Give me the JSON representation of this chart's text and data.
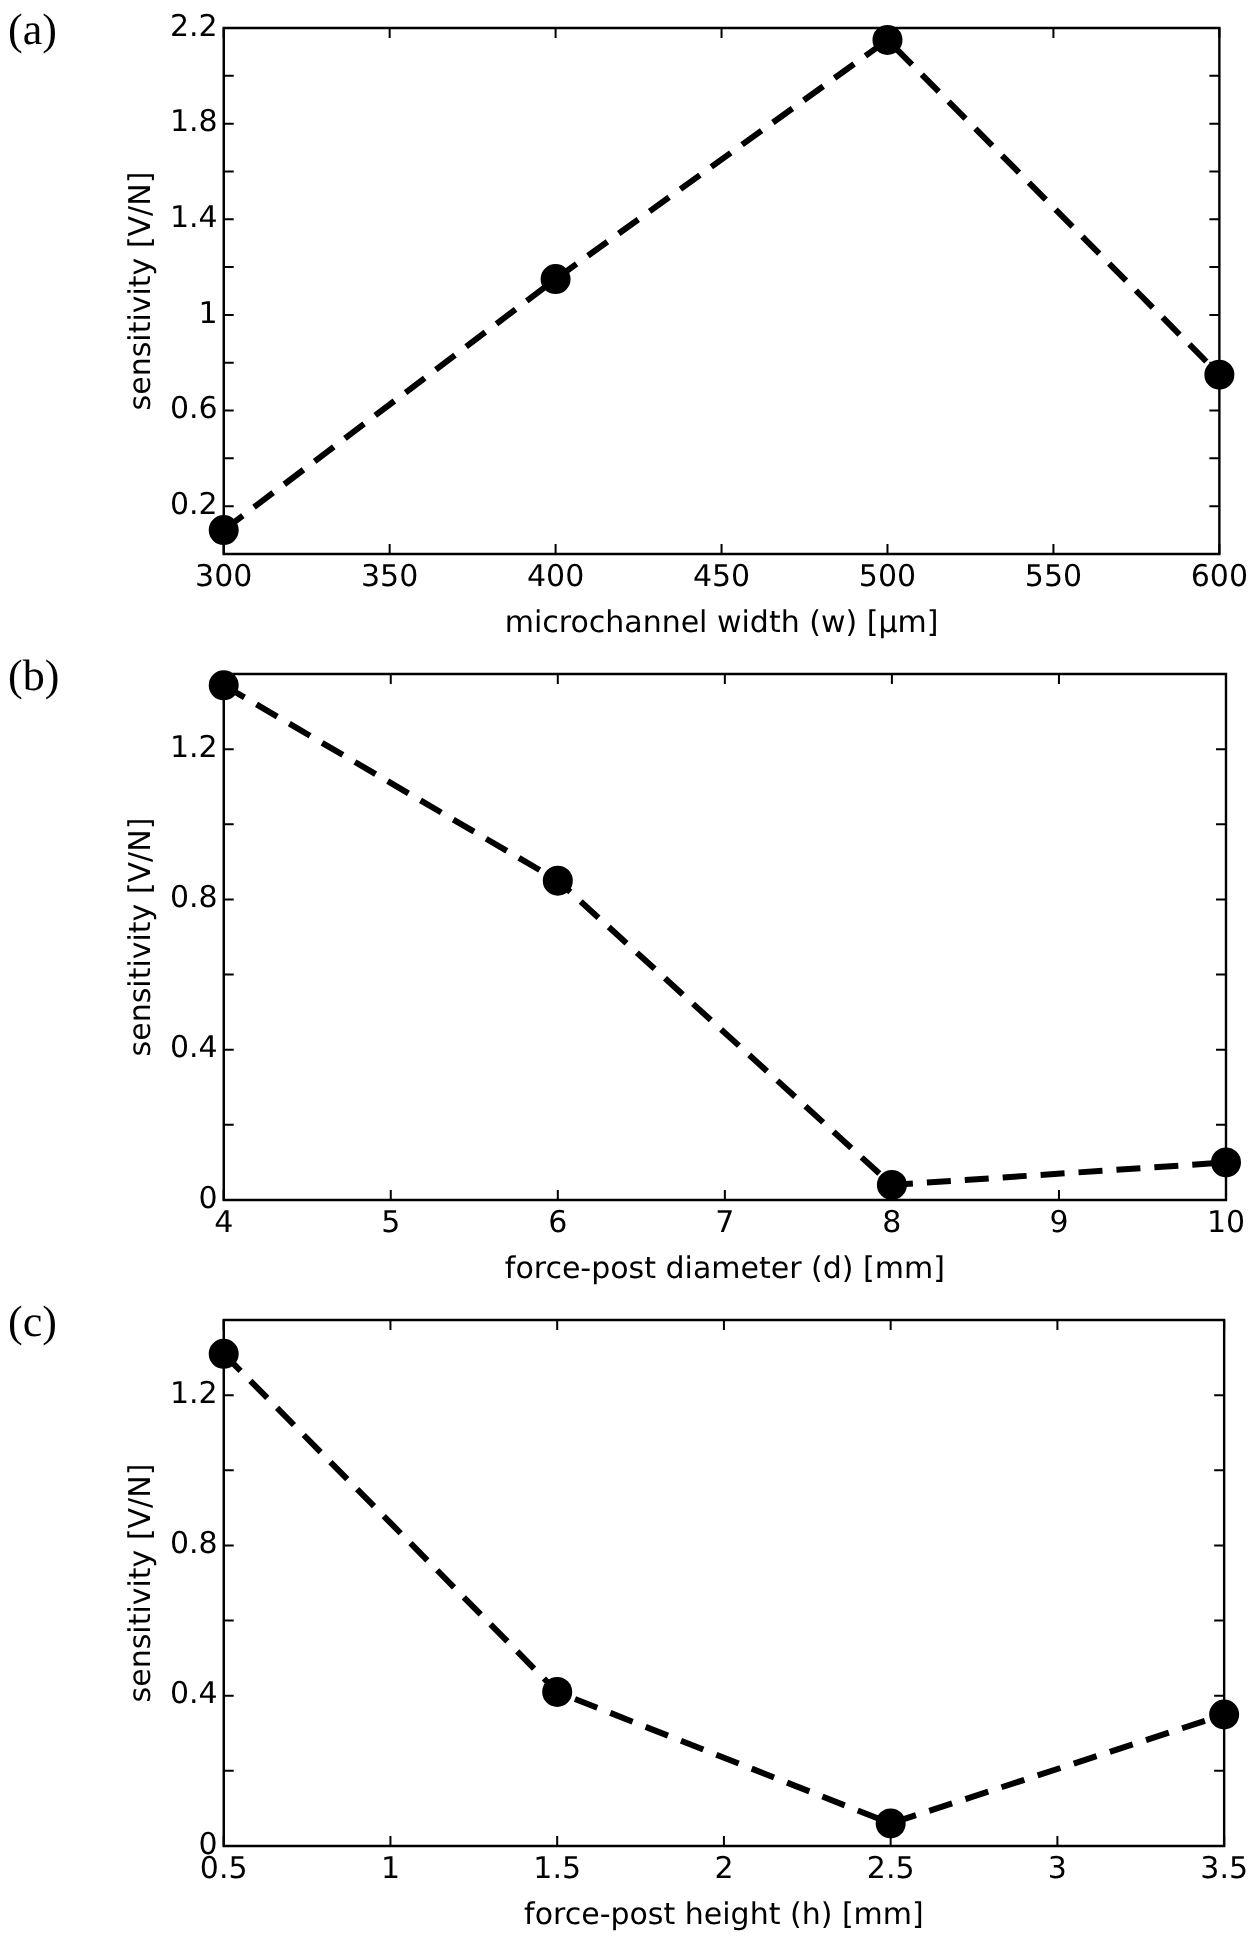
{
  "chart_data": [
    {
      "type": "line",
      "annotations": [
        "(a)"
      ],
      "x": [
        300,
        400,
        500,
        600
      ],
      "xlim": [
        300,
        600
      ],
      "xticks": [
        300,
        350,
        400,
        450,
        500,
        550,
        600
      ],
      "ylim": [
        0,
        2.2
      ],
      "yticks": [
        0.2,
        {
          "value": 0.4,
          "label": null
        },
        0.6,
        {
          "value": 0.8,
          "label": null
        },
        1,
        {
          "value": 1.2,
          "label": null
        },
        1.4,
        {
          "value": 1.6,
          "label": null
        },
        1.8,
        {
          "value": 2,
          "label": null
        },
        2.2
      ],
      "xlabel": "microchannel width (w) [μm]",
      "ylabel": "sensitivity [V/N]",
      "marker": "circle",
      "line_style": "dashed",
      "series": [
        {
          "color": "#000000",
          "values": [
            0.1,
            1.15,
            2.15,
            0.75
          ]
        }
      ]
    },
    {
      "type": "line",
      "annotations": [
        "(b)"
      ],
      "x": [
        4,
        6,
        8,
        10
      ],
      "xlim": [
        4,
        10
      ],
      "xticks": [
        4,
        5,
        6,
        7,
        8,
        9,
        10
      ],
      "ylim": [
        0,
        1.4
      ],
      "yticks": [
        0,
        {
          "value": 0.2,
          "label": null
        },
        0.4,
        {
          "value": 0.6,
          "label": null
        },
        0.8,
        {
          "value": 1,
          "label": null
        },
        1.2
      ],
      "xlabel": "force-post diameter (d) [mm]",
      "ylabel": "sensitivity [V/N]",
      "marker": "circle",
      "line_style": "dashed",
      "series": [
        {
          "color": "#000000",
          "values": [
            1.37,
            0.85,
            0.04,
            0.1
          ]
        }
      ]
    },
    {
      "type": "line",
      "annotations": [
        "(c)"
      ],
      "x": [
        0.5,
        1.5,
        2.5,
        3.5
      ],
      "xlim": [
        0.5,
        3.5
      ],
      "xticks": [
        0.5,
        1,
        1.5,
        2,
        2.5,
        3,
        3.5
      ],
      "ylim": [
        0,
        1.4
      ],
      "yticks": [
        0,
        {
          "value": 0.2,
          "label": null
        },
        0.4,
        {
          "value": 0.6,
          "label": null
        },
        0.8,
        {
          "value": 1,
          "label": null
        },
        1.2
      ],
      "xlabel": "force-post height (h) [mm]",
      "ylabel": "sensitivity [V/N]",
      "marker": "circle",
      "line_style": "dashed",
      "series": [
        {
          "color": "#000000",
          "values": [
            1.31,
            0.41,
            0.06,
            0.35
          ]
        }
      ]
    }
  ]
}
